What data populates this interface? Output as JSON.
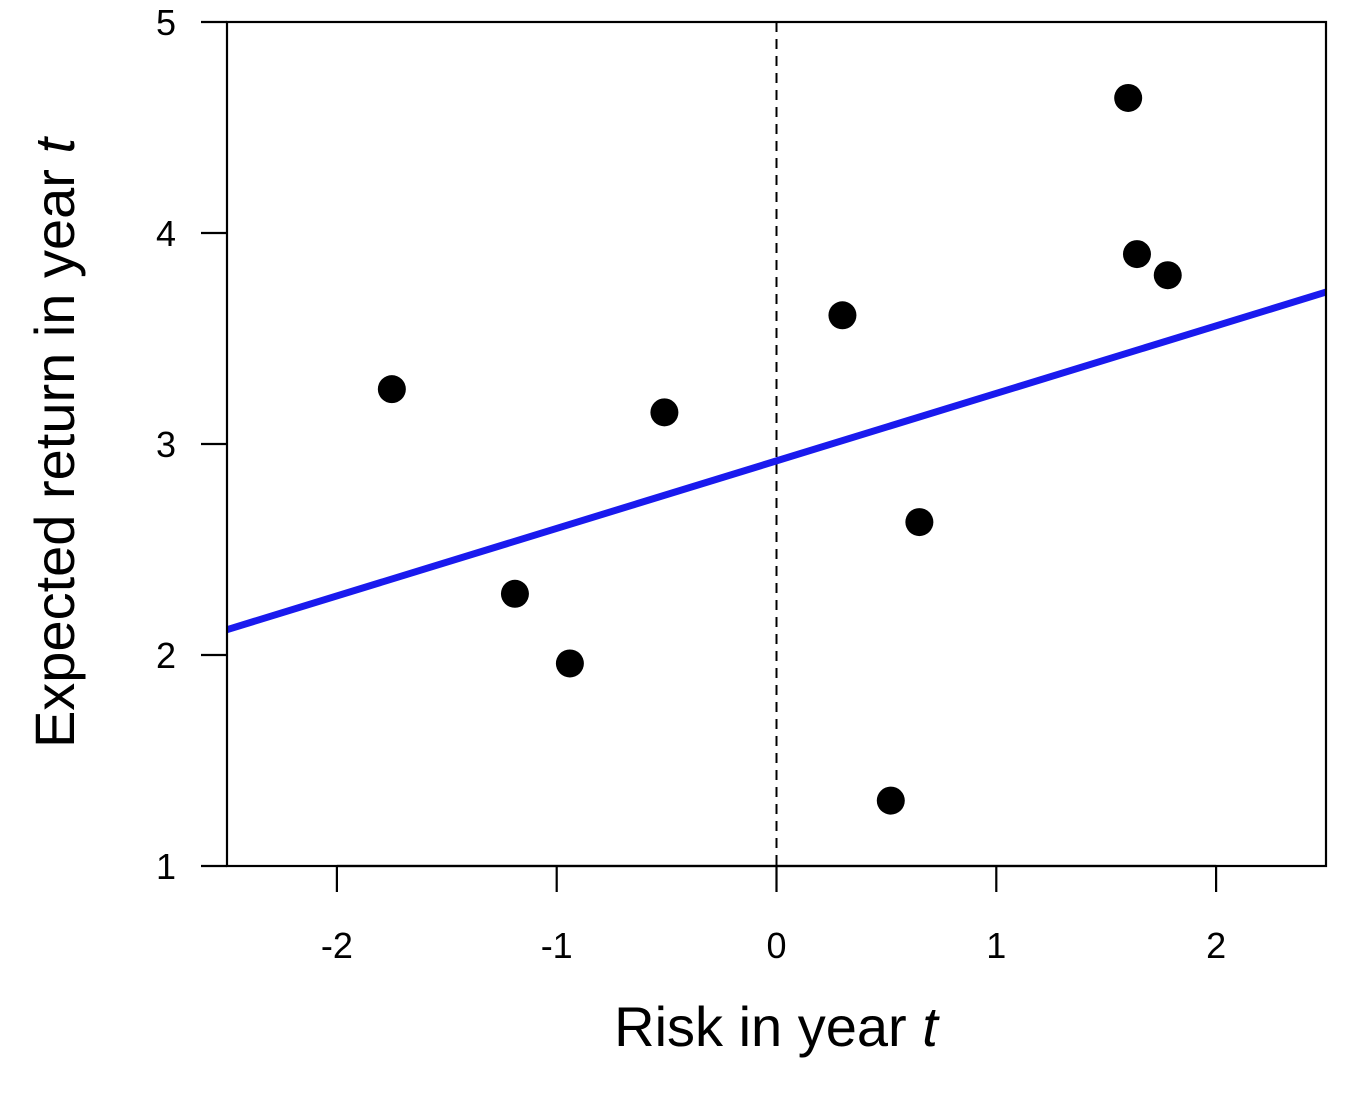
{
  "chart_data": {
    "type": "scatter",
    "xlabel": "Risk in year",
    "xlabel_var": "t",
    "ylabel": "Expected return in year",
    "ylabel_var": "t",
    "xlim": [
      -2.5,
      2.5
    ],
    "ylim": [
      1,
      5
    ],
    "x_ticks": [
      -2,
      -1,
      0,
      1,
      2
    ],
    "y_ticks": [
      1,
      2,
      3,
      4,
      5
    ],
    "x_tick_labels": [
      "-2",
      "-1",
      "0",
      "1",
      "2"
    ],
    "y_tick_labels": [
      "1",
      "2",
      "3",
      "4",
      "5"
    ],
    "grid": false,
    "legend": "none",
    "points": [
      {
        "x": -1.75,
        "y": 3.26
      },
      {
        "x": -1.19,
        "y": 2.29
      },
      {
        "x": -0.94,
        "y": 1.96
      },
      {
        "x": -0.51,
        "y": 3.15
      },
      {
        "x": 0.3,
        "y": 3.61
      },
      {
        "x": 0.52,
        "y": 1.31
      },
      {
        "x": 0.65,
        "y": 2.63
      },
      {
        "x": 1.6,
        "y": 4.64
      },
      {
        "x": 1.64,
        "y": 3.9
      },
      {
        "x": 1.78,
        "y": 3.8
      }
    ],
    "reference_line": {
      "orientation": "vertical",
      "x": 0,
      "style": "dashed",
      "color": "#000000"
    },
    "fit_line": {
      "intercept": 2.92,
      "slope": 0.32,
      "color": "#1a1aee"
    },
    "point_color": "#000000"
  }
}
